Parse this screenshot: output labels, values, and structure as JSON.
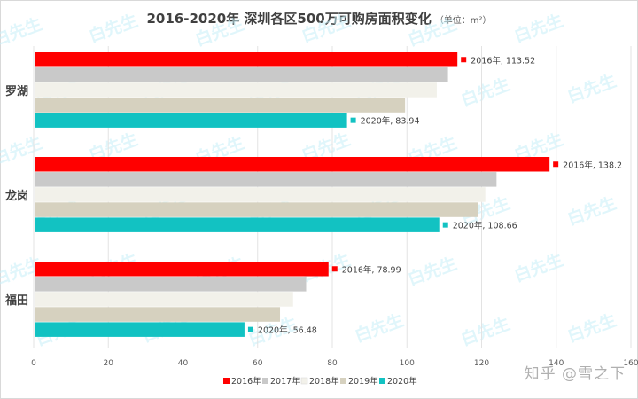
{
  "chart_data": {
    "type": "bar",
    "orientation": "horizontal",
    "title": "2016-2020年 深圳各区500万可购房面积变化",
    "unit_note": "（单位：m²）",
    "categories": [
      "罗湖",
      "龙岗",
      "福田"
    ],
    "series": [
      {
        "name": "2016年",
        "color": "#ff0000",
        "values": [
          113.52,
          138.2,
          78.99
        ]
      },
      {
        "name": "2017年",
        "color": "#c9c9c9",
        "values": [
          111,
          124,
          73
        ]
      },
      {
        "name": "2018年",
        "color": "#f2f1ea",
        "values": [
          108,
          121,
          69.5
        ]
      },
      {
        "name": "2019年",
        "color": "#d6d1bf",
        "values": [
          99.5,
          119,
          66
        ]
      },
      {
        "name": "2020年",
        "color": "#12c2c2",
        "values": [
          83.94,
          108.66,
          56.48
        ]
      }
    ],
    "data_labels": [
      {
        "category": "罗湖",
        "series": "2016年",
        "text": "2016年, 113.52"
      },
      {
        "category": "罗湖",
        "series": "2020年",
        "text": "2020年, 83.94"
      },
      {
        "category": "龙岗",
        "series": "2016年",
        "text": "2016年, 138.2"
      },
      {
        "category": "龙岗",
        "series": "2020年",
        "text": "2020年, 108.66"
      },
      {
        "category": "福田",
        "series": "2016年",
        "text": "2016年, 78.99"
      },
      {
        "category": "福田",
        "series": "2020年",
        "text": "2020年, 56.48"
      }
    ],
    "xlim": [
      0,
      160
    ],
    "xticks": [
      0,
      20,
      40,
      60,
      80,
      100,
      120,
      140,
      160
    ],
    "grid": true,
    "legend_position": "bottom"
  },
  "watermark": {
    "logo_text": "白先生",
    "credit": "知乎 @雪之下"
  }
}
